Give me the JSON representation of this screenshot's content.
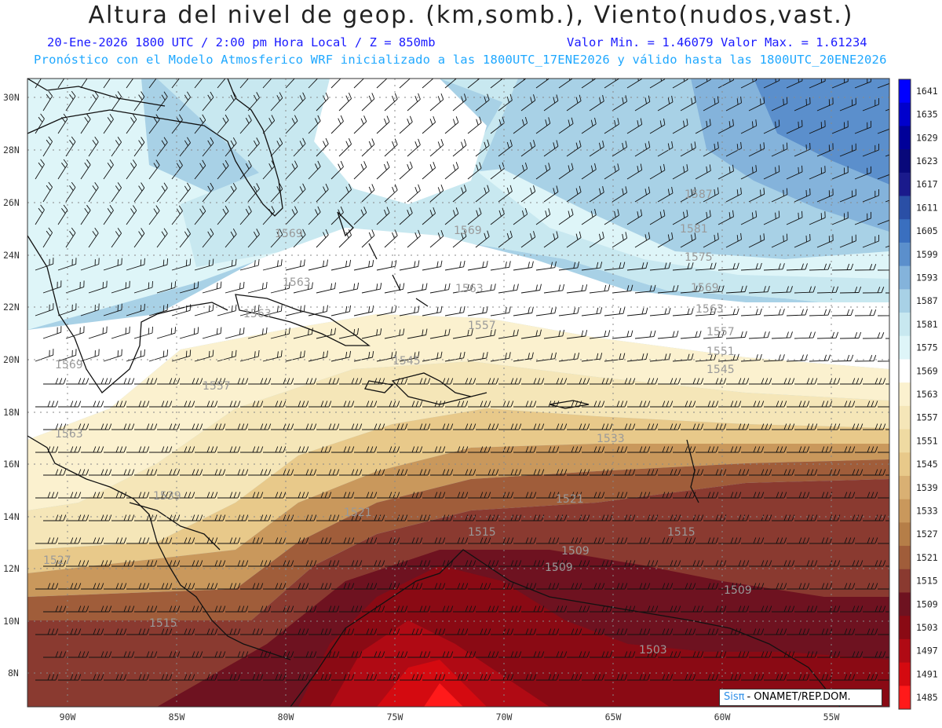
{
  "header": {
    "title": "Altura del nivel de geop. (km,somb.), Viento(nudos,vast.)",
    "subtitle_left": "20-Ene-2026  1800 UTC / 2:00 pm Hora Local / Z = 850mb",
    "subtitle_right": "Valor Min. = 1.46079  Valor Max. = 1.61234",
    "subtitle2": "Pronóstico con el Modelo Atmosferico WRF inicializado a las 1800UTC_17ENE2026 y válido hasta las  1800UTC_20ENE2026"
  },
  "map": {
    "lon_labels": [
      "90W",
      "85W",
      "80W",
      "75W",
      "70W",
      "65W",
      "60W",
      "55W"
    ],
    "lat_labels": [
      "30N",
      "28N",
      "26N",
      "24N",
      "22N",
      "20N",
      "18N",
      "16N",
      "14N",
      "12N",
      "10N",
      "8N"
    ],
    "contour_labels": [
      "1587",
      "1581",
      "1575",
      "1569",
      "1569",
      "1569",
      "1569",
      "1563",
      "1563",
      "1563",
      "1563",
      "1563",
      "1557",
      "1557",
      "1557",
      "1551",
      "1545",
      "1545",
      "1539",
      "1533",
      "1527",
      "1521",
      "1521",
      "1515",
      "1515",
      "1515",
      "1509",
      "1509",
      "1509",
      "1503"
    ]
  },
  "colorbar": {
    "labels": [
      "1641",
      "1635",
      "1629",
      "1623",
      "1617",
      "1611",
      "1605",
      "1599",
      "1593",
      "1587",
      "1581",
      "1575",
      "1569",
      "1563",
      "1557",
      "1551",
      "1545",
      "1539",
      "1533",
      "1527",
      "1521",
      "1515",
      "1509",
      "1503",
      "1497",
      "1491",
      "1485"
    ],
    "colors": [
      "#0000ff",
      "#0000cc",
      "#000099",
      "#08087a",
      "#1a1a8c",
      "#2a4fa6",
      "#3a6fbf",
      "#5b8fcc",
      "#84b3db",
      "#a8d1e6",
      "#c8e8f0",
      "#def5f8",
      "#ffffff",
      "#fbf1cf",
      "#f5e6b8",
      "#efdaa2",
      "#e8c98a",
      "#d9b073",
      "#c9985c",
      "#b57e48",
      "#a05d3a",
      "#8a3a30",
      "#6e1220",
      "#8a0a14",
      "#b00a14",
      "#d40a10",
      "#ff1a1a"
    ]
  },
  "credit": {
    "logo": "Sisπ",
    "text": "- ONAMET/REP.DOM."
  }
}
